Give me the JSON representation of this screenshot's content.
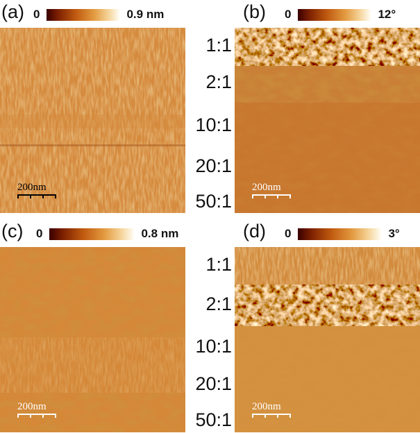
{
  "panels": [
    {
      "label": "(a)",
      "cb_min": "0",
      "cb_max": "0.9 nm",
      "scalebar": "200nm",
      "scalebar_color": "#000000"
    },
    {
      "label": "(b)",
      "cb_min": "0",
      "cb_max": "12°",
      "scalebar": "200nm",
      "scalebar_color": "#ffffff"
    },
    {
      "label": "(c)",
      "cb_min": "0",
      "cb_max": "0.8 nm",
      "scalebar": "200nm",
      "scalebar_color": "#ffffff"
    },
    {
      "label": "(d)",
      "cb_min": "0",
      "cb_max": "3°",
      "scalebar": "200nm",
      "scalebar_color": "#ffffff"
    }
  ],
  "ratios_top": [
    "1:1",
    "2:1",
    "10:1",
    "20:1",
    "50:1"
  ],
  "ratios_bottom": [
    "1:1",
    "2:1",
    "10:1",
    "20:1",
    "50:1"
  ],
  "colors": {
    "colormap_dark": "#3a0000",
    "colormap_mid": "#c05a10",
    "colormap_light": "#fffdf5",
    "image_base": "#d08a3c"
  }
}
